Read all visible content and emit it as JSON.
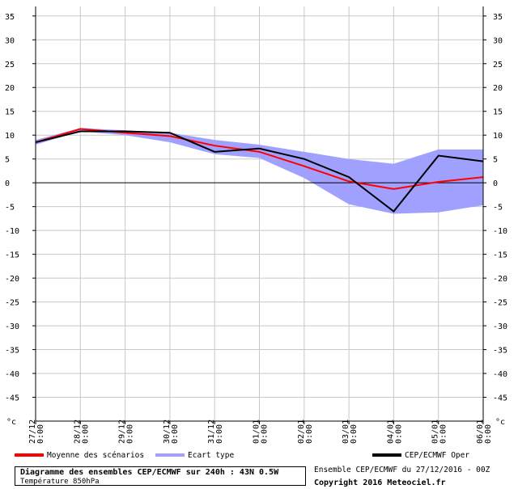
{
  "chart_data": {
    "type": "line",
    "unit": "°c",
    "ylim": [
      -50,
      37
    ],
    "yticks": [
      35,
      30,
      25,
      20,
      15,
      10,
      5,
      0,
      -5,
      -10,
      -15,
      -20,
      -25,
      -30,
      -35,
      -40,
      -45
    ],
    "categories": [
      {
        "date": "27/12",
        "time": "0:00"
      },
      {
        "date": "28/12",
        "time": "0:00"
      },
      {
        "date": "29/12",
        "time": "0:00"
      },
      {
        "date": "30/12",
        "time": "0:00"
      },
      {
        "date": "31/12",
        "time": "0:00"
      },
      {
        "date": "01/01",
        "time": "0:00"
      },
      {
        "date": "02/01",
        "time": "0:00"
      },
      {
        "date": "03/01",
        "time": "0:00"
      },
      {
        "date": "04/01",
        "time": "0:00"
      },
      {
        "date": "05/01",
        "time": "0:00"
      },
      {
        "date": "06/01",
        "time": "0:00"
      }
    ],
    "series": [
      {
        "name": "Ecart type",
        "kind": "band",
        "color": "#a0a0ff",
        "upper": [
          9.0,
          11.5,
          11.0,
          10.5,
          9.0,
          8.0,
          6.5,
          5.0,
          4.0,
          7.0,
          7.0
        ],
        "lower": [
          8.0,
          10.8,
          10.0,
          8.5,
          6.0,
          5.2,
          1.0,
          -4.5,
          -6.5,
          -6.2,
          -4.7
        ]
      },
      {
        "name": "Moyenne des scénarios",
        "kind": "line",
        "color": "#ff0000",
        "x": [
          0,
          1,
          2,
          3,
          4,
          5,
          6,
          7,
          8,
          9,
          10
        ],
        "values": [
          8.5,
          11.3,
          10.5,
          9.8,
          7.8,
          6.5,
          3.5,
          0.3,
          -1.3,
          0.2,
          1.2
        ]
      },
      {
        "name": "CEP/ECMWF Oper",
        "kind": "line",
        "color": "#000000",
        "x": [
          0,
          1,
          2,
          3,
          3.5,
          4,
          5,
          6,
          7,
          8,
          9,
          10
        ],
        "values": [
          8.5,
          10.8,
          10.8,
          10.5,
          8.5,
          6.5,
          7.2,
          5.0,
          1.2,
          -6.0,
          5.7,
          4.5
        ]
      }
    ]
  },
  "legend": {
    "mean_label": "Moyenne des scénarios",
    "spread_label": "Ecart type",
    "oper_label": "CEP/ECMWF Oper"
  },
  "footer": {
    "title": "Diagramme des ensembles CEP/ECMWF sur 240h : 43N 0.5W",
    "subtitle": "Température 850hPa",
    "run_info": "Ensemble CEP/ECMWF du 27/12/2016 - 00Z",
    "copyright": "Copyright 2016 Meteociel.fr"
  }
}
